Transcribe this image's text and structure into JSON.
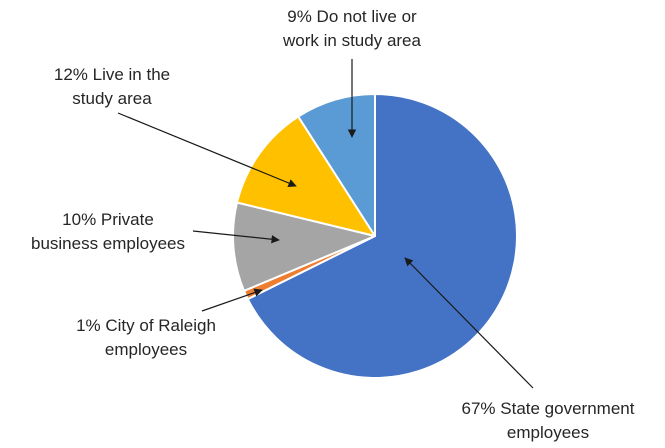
{
  "chart_data": {
    "type": "pie",
    "title": "",
    "start_angle_deg": 0,
    "direction": "clockwise",
    "slices": [
      {
        "key": "state-government",
        "value": 67,
        "color": "#4472C4",
        "label_lines": [
          "67% State government",
          "employees"
        ]
      },
      {
        "key": "city-of-raleigh",
        "value": 1,
        "color": "#ED7D31",
        "label_lines": [
          "1% City of Raleigh",
          "employees"
        ]
      },
      {
        "key": "private-business",
        "value": 10,
        "color": "#A5A5A5",
        "label_lines": [
          "10% Private",
          "business employees"
        ]
      },
      {
        "key": "live-in-study-area",
        "value": 12,
        "color": "#FFC000",
        "label_lines": [
          "12% Live in the",
          "study area"
        ]
      },
      {
        "key": "do-not-live-or-work",
        "value": 9,
        "color": "#5B9BD5",
        "label_lines": [
          "9% Do not live or",
          "work in study area"
        ]
      }
    ],
    "legend": "none",
    "label_style": "callout labels with arrows"
  }
}
